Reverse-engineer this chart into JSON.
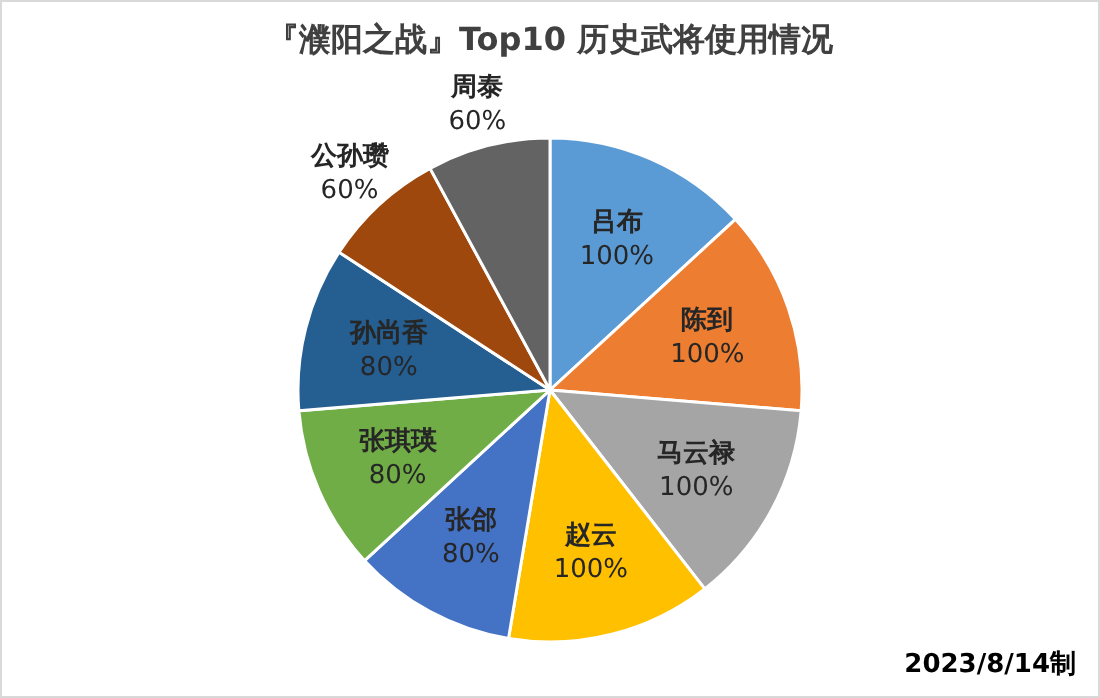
{
  "chart_data": {
    "type": "pie",
    "title": "『濮阳之战』Top10 历史武将使用情况",
    "categories": [
      "吕布",
      "陈到",
      "马云禄",
      "赵云",
      "张郃",
      "张琪瑛",
      "孙尚香",
      "公孙瓒",
      "周泰"
    ],
    "values": [
      100,
      100,
      100,
      100,
      80,
      80,
      80,
      60,
      60
    ],
    "value_labels": [
      "100%",
      "100%",
      "100%",
      "100%",
      "80%",
      "80%",
      "80%",
      "60%",
      "60%"
    ],
    "colors": [
      "#5b9bd5",
      "#ed7d31",
      "#a5a5a5",
      "#ffc000",
      "#4472c4",
      "#70ad47",
      "#255e91",
      "#9e480e",
      "#636363"
    ],
    "annotations": [
      "2023/8/14制"
    ]
  }
}
